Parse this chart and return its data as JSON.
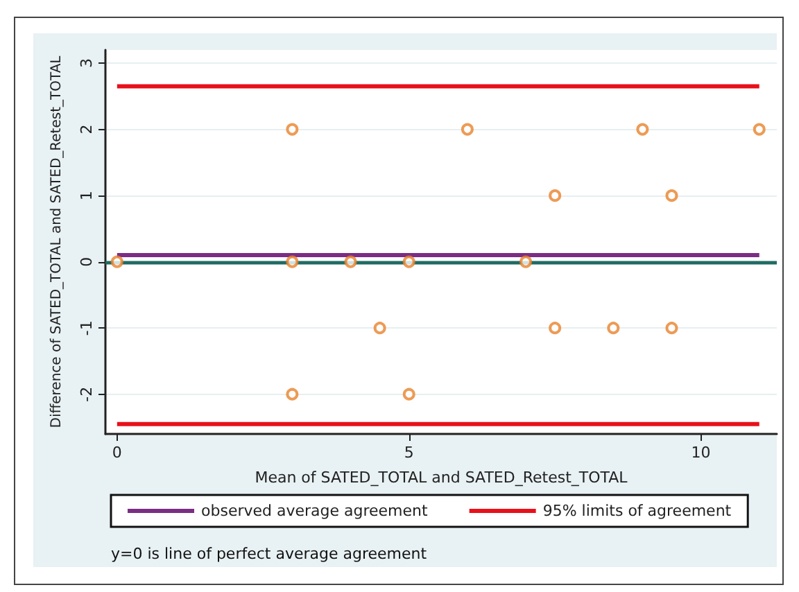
{
  "chart_data": {
    "type": "scatter",
    "xlabel": "Mean of SATED_TOTAL and SATED_Retest_TOTAL",
    "ylabel": "Difference of SATED_TOTAL and SATED_Retest_TOTAL",
    "series": [
      {
        "marker": "circle",
        "color": "#e8822a",
        "x": [
          0,
          3,
          3,
          3,
          4,
          4.5,
          5,
          5,
          6,
          7,
          7.5,
          7.5,
          8.5,
          9,
          9.5,
          9.5,
          11
        ],
        "values": [
          0,
          2,
          0,
          -2,
          0,
          -1,
          0,
          -2,
          2,
          0,
          1,
          -1,
          -1,
          2,
          1,
          -1,
          2
        ]
      },
      {
        "type": "line",
        "name": "observed average agreement",
        "color": "#7b2d84",
        "x": [
          0,
          11
        ],
        "values": [
          0.1,
          0.1
        ]
      },
      {
        "type": "line",
        "name": "95% limits of agreement",
        "color": "#e8101a",
        "x": [
          0,
          11
        ],
        "values": [
          2.65,
          2.65
        ]
      },
      {
        "type": "line",
        "color": "#e8101a",
        "x": [
          0,
          11
        ],
        "values": [
          -2.45,
          -2.45
        ]
      }
    ],
    "ref_lines": [
      {
        "axis": "y",
        "value": 0,
        "color": "#1f6b63"
      }
    ],
    "annotations": [
      "y=0 is line of perfect average agreement"
    ],
    "xlim": [
      -0.2,
      11.3
    ],
    "xticks": [
      0,
      5,
      10
    ],
    "ylim": [
      -2.6,
      3.2
    ],
    "yticks": [
      -2,
      -1,
      0,
      1,
      2,
      3
    ],
    "grid": "y",
    "legend": "bottom",
    "line_style": "solid"
  }
}
